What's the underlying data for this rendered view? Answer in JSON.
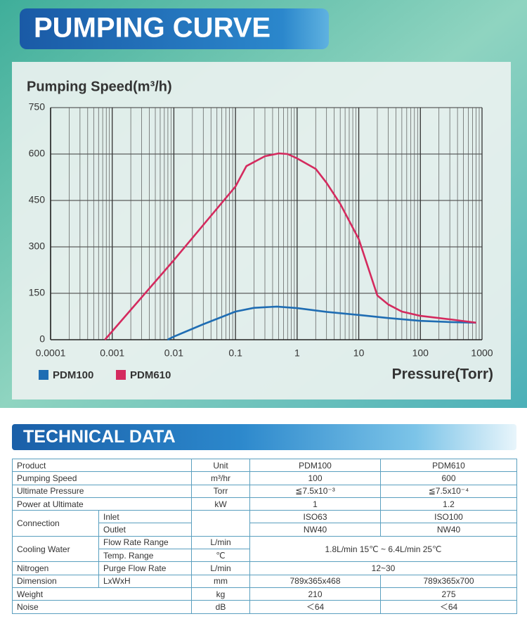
{
  "chart_data": {
    "type": "line",
    "title": "PUMPING CURVE",
    "y_label": "Pumping Speed(m³/h)",
    "x_label": "Pressure(Torr)",
    "x_scale": "log",
    "grid": true,
    "legend": "bottom-left",
    "xlim": [
      0.0001,
      1000
    ],
    "xticks": [
      0.0001,
      0.001,
      0.01,
      0.1,
      1,
      10,
      100,
      1000
    ],
    "ylim": [
      0,
      750
    ],
    "yticks": [
      0,
      150,
      300,
      450,
      600,
      750
    ],
    "series": [
      {
        "name": "PDM100",
        "color": "#1f6db3",
        "x": [
          0.0079,
          0.01,
          0.03,
          0.1,
          0.2,
          0.47,
          1,
          3,
          10,
          30,
          100,
          300,
          800
        ],
        "values": [
          0,
          10,
          50,
          91,
          103,
          107,
          102,
          90,
          80,
          70,
          61,
          57,
          55
        ]
      },
      {
        "name": "PDM610",
        "color": "#d42a5e",
        "x": [
          0.00076,
          0.01,
          0.1,
          0.15,
          0.3,
          0.5,
          0.7,
          1,
          2,
          3,
          5,
          10,
          20,
          30,
          50,
          100,
          300,
          800
        ],
        "values": [
          0,
          257,
          495,
          561,
          593,
          602,
          600,
          586,
          552,
          507,
          439,
          325,
          143,
          114,
          91,
          77,
          66,
          55
        ]
      }
    ]
  },
  "table": {
    "title": "TECHNICAL DATA",
    "rows": [
      [
        "Product",
        "Unit",
        "PDM100",
        "PDM610"
      ],
      [
        "Pumping Speed",
        "m³/hr",
        "100",
        "600"
      ],
      [
        "Ultimate Pressure",
        "Torr",
        "≦7.5x10⁻³",
        "≦7.5x10⁻⁴"
      ],
      [
        "Power at Ultimate",
        "kW",
        "1",
        "1.2"
      ],
      [
        "Connection",
        "Inlet",
        "ISO63",
        "ISO100"
      ],
      [
        "Outlet",
        "NW40",
        "NW40"
      ],
      [
        "Cooling Water",
        "Flow Rate Range",
        "L/min",
        "1.8L/min 15℃ ~ 6.4L/min 25℃"
      ],
      [
        "Temp. Range",
        "℃"
      ],
      [
        "Nitrogen",
        "Purge Flow Rate",
        "L/min",
        "12~30"
      ],
      [
        "Dimension",
        "LxWxH",
        "mm",
        "789x365x468",
        "789x365x700"
      ],
      [
        "Weight",
        "kg",
        "210",
        "275"
      ],
      [
        "Noise",
        "dB",
        "＜64",
        "＜64"
      ]
    ]
  }
}
